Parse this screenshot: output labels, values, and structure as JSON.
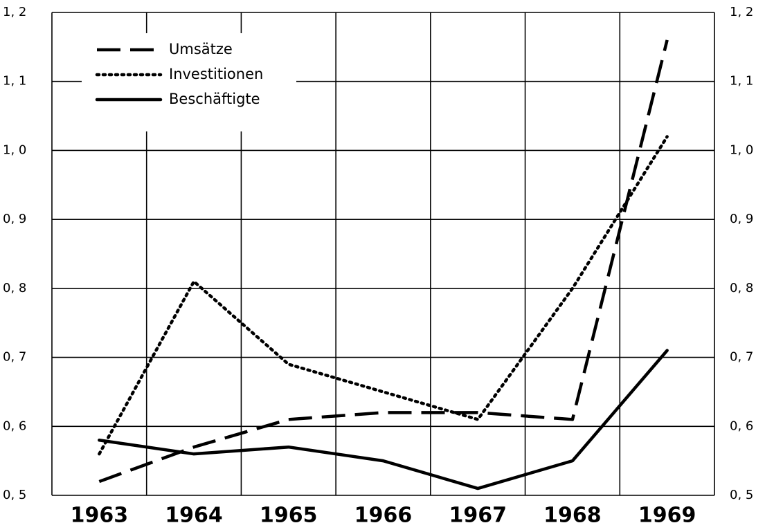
{
  "chart_data": {
    "type": "line",
    "categories": [
      "1963",
      "1964",
      "1965",
      "1966",
      "1967",
      "1968",
      "1969"
    ],
    "series": [
      {
        "name": "Umsätze",
        "color": "#000000",
        "dash": "dashed",
        "values": [
          0.52,
          0.57,
          0.61,
          0.62,
          0.62,
          0.61,
          1.16
        ]
      },
      {
        "name": "Investitionen",
        "color": "#000000",
        "dash": "dotted",
        "values": [
          0.56,
          0.81,
          0.69,
          0.65,
          0.61,
          0.8,
          1.02
        ]
      },
      {
        "name": "Beschäftigte",
        "color": "#000000",
        "dash": "solid",
        "values": [
          0.58,
          0.56,
          0.57,
          0.55,
          0.51,
          0.55,
          0.71
        ]
      }
    ],
    "ylim": [
      0.5,
      1.2
    ],
    "yticks": [
      {
        "value": 0.5,
        "label": "0, 5"
      },
      {
        "value": 0.6,
        "label": "0, 6"
      },
      {
        "value": 0.7,
        "label": "0, 7"
      },
      {
        "value": 0.8,
        "label": "0, 8"
      },
      {
        "value": 0.9,
        "label": "0, 9"
      },
      {
        "value": 1.0,
        "label": "1, 0"
      },
      {
        "value": 1.1,
        "label": "1, 1"
      },
      {
        "value": 1.2,
        "label": "1, 2"
      }
    ],
    "y2lim": [
      0.5,
      1.2
    ],
    "y2ticks": [
      {
        "value": 0.5,
        "label": "0, 5"
      },
      {
        "value": 0.6,
        "label": "0, 6"
      },
      {
        "value": 0.7,
        "label": "0, 7"
      },
      {
        "value": 0.8,
        "label": "0, 8"
      },
      {
        "value": 0.9,
        "label": "0, 9"
      },
      {
        "value": 1.0,
        "label": "1, 0"
      },
      {
        "value": 1.1,
        "label": "1, 1"
      },
      {
        "value": 1.2,
        "label": "1, 2"
      }
    ],
    "grid": true,
    "legend": "upper left"
  }
}
